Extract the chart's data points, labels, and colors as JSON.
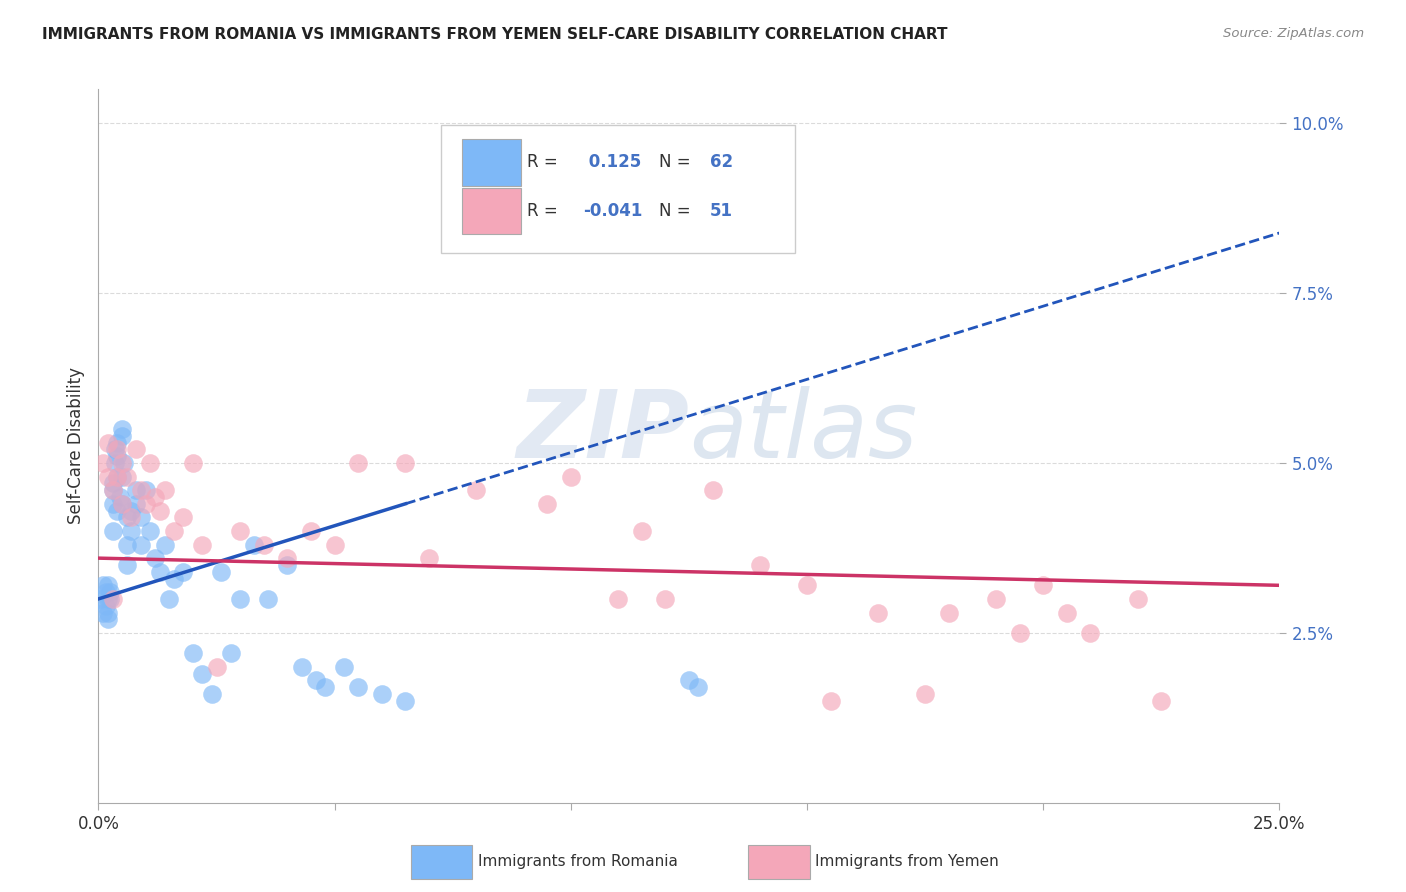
{
  "title": "IMMIGRANTS FROM ROMANIA VS IMMIGRANTS FROM YEMEN SELF-CARE DISABILITY CORRELATION CHART",
  "source": "Source: ZipAtlas.com",
  "ylabel": "Self-Care Disability",
  "xlim": [
    0.0,
    0.25
  ],
  "ylim": [
    0.0,
    0.105
  ],
  "romania_color": "#7EB8F7",
  "yemen_color": "#F4A7B9",
  "romania_line_color": "#2255BB",
  "yemen_line_color": "#CC3366",
  "romania_R": 0.125,
  "romania_N": 62,
  "yemen_R": -0.041,
  "yemen_N": 51,
  "romania_scatter_x": [
    0.0005,
    0.001,
    0.001,
    0.0015,
    0.0015,
    0.002,
    0.002,
    0.002,
    0.002,
    0.0025,
    0.0025,
    0.003,
    0.003,
    0.003,
    0.003,
    0.0035,
    0.0035,
    0.004,
    0.004,
    0.004,
    0.004,
    0.0045,
    0.005,
    0.005,
    0.005,
    0.005,
    0.0055,
    0.006,
    0.006,
    0.006,
    0.007,
    0.007,
    0.008,
    0.008,
    0.009,
    0.009,
    0.01,
    0.011,
    0.012,
    0.013,
    0.014,
    0.015,
    0.016,
    0.018,
    0.02,
    0.022,
    0.024,
    0.026,
    0.028,
    0.03,
    0.033,
    0.036,
    0.04,
    0.043,
    0.046,
    0.048,
    0.052,
    0.055,
    0.06,
    0.065,
    0.125,
    0.127
  ],
  "romania_scatter_y": [
    0.03,
    0.028,
    0.032,
    0.029,
    0.031,
    0.03,
    0.028,
    0.032,
    0.027,
    0.03,
    0.031,
    0.047,
    0.046,
    0.044,
    0.04,
    0.052,
    0.05,
    0.048,
    0.043,
    0.053,
    0.051,
    0.045,
    0.054,
    0.048,
    0.044,
    0.055,
    0.05,
    0.038,
    0.035,
    0.042,
    0.04,
    0.043,
    0.046,
    0.044,
    0.042,
    0.038,
    0.046,
    0.04,
    0.036,
    0.034,
    0.038,
    0.03,
    0.033,
    0.034,
    0.022,
    0.019,
    0.016,
    0.034,
    0.022,
    0.03,
    0.038,
    0.03,
    0.035,
    0.02,
    0.018,
    0.017,
    0.02,
    0.017,
    0.016,
    0.015,
    0.018,
    0.017
  ],
  "yemen_scatter_x": [
    0.001,
    0.002,
    0.002,
    0.003,
    0.003,
    0.004,
    0.004,
    0.005,
    0.005,
    0.006,
    0.007,
    0.008,
    0.009,
    0.01,
    0.011,
    0.012,
    0.013,
    0.014,
    0.016,
    0.018,
    0.02,
    0.022,
    0.025,
    0.03,
    0.035,
    0.04,
    0.045,
    0.05,
    0.055,
    0.065,
    0.07,
    0.08,
    0.095,
    0.1,
    0.11,
    0.115,
    0.12,
    0.13,
    0.14,
    0.15,
    0.155,
    0.165,
    0.175,
    0.18,
    0.19,
    0.195,
    0.2,
    0.205,
    0.21,
    0.22,
    0.225
  ],
  "yemen_scatter_y": [
    0.05,
    0.048,
    0.053,
    0.03,
    0.046,
    0.052,
    0.048,
    0.044,
    0.05,
    0.048,
    0.042,
    0.052,
    0.046,
    0.044,
    0.05,
    0.045,
    0.043,
    0.046,
    0.04,
    0.042,
    0.05,
    0.038,
    0.02,
    0.04,
    0.038,
    0.036,
    0.04,
    0.038,
    0.05,
    0.05,
    0.036,
    0.046,
    0.044,
    0.048,
    0.03,
    0.04,
    0.03,
    0.046,
    0.035,
    0.032,
    0.015,
    0.028,
    0.016,
    0.028,
    0.03,
    0.025,
    0.032,
    0.028,
    0.025,
    0.03,
    0.015
  ],
  "background_color": "#ffffff",
  "grid_color": "#cccccc",
  "watermark_zip_color": "#D0D8E8",
  "watermark_atlas_color": "#B8C8DC"
}
